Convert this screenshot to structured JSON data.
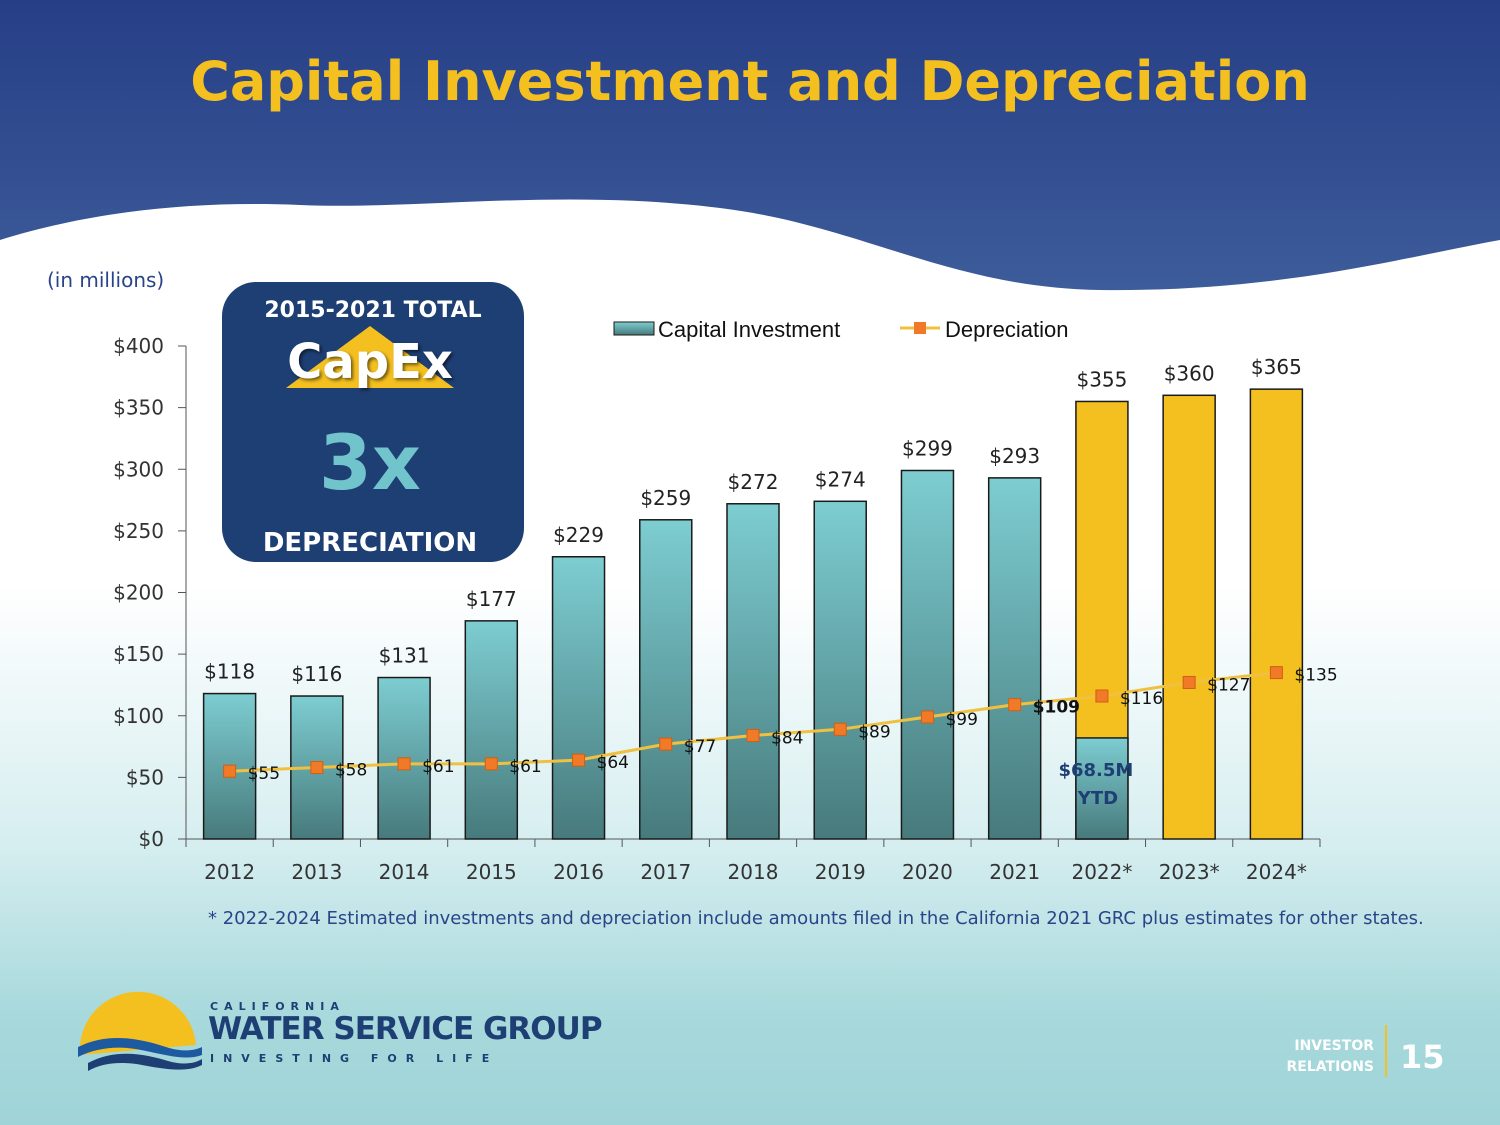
{
  "slide": {
    "title": "Capital Investment and Depreciation",
    "units_note": "(in millions)",
    "footnote": "* 2022-2024 Estimated investments and depreciation include amounts filed in the California 2021 GRC plus estimates for other states.",
    "page_number": "15",
    "investor_relations": [
      "INVESTOR",
      "RELATIONS"
    ]
  },
  "callout": {
    "top_text": "2015-2021 TOTAL",
    "capex_text": "CapEx",
    "multiplier_text": "3x",
    "bottom_text": "DEPRECIATION"
  },
  "logo": {
    "small_text": "CALIFORNIA",
    "main_text": "WATER SERVICE GROUP",
    "tagline": "INVESTING FOR LIFE"
  },
  "colors": {
    "header_blue": "#263e86",
    "title_gold": "#f4c020",
    "bar_teal_top": "#7dcdd1",
    "bar_teal_bottom": "#477a7c",
    "bar_gold": "#f4c020",
    "line_gold": "#f0c040",
    "marker_orange": "#f07a28",
    "text_blue": "#2a4488"
  },
  "chart_data": {
    "type": "bar",
    "categories": [
      "2012",
      "2013",
      "2014",
      "2015",
      "2016",
      "2017",
      "2018",
      "2019",
      "2020",
      "2021",
      "2022*",
      "2023*",
      "2024*"
    ],
    "ylim": [
      0,
      400
    ],
    "y_ticks": [
      "$0",
      "$50",
      "$100",
      "$150",
      "$200",
      "$250",
      "$300",
      "$350",
      "$400"
    ],
    "legend_position": "top",
    "series": [
      {
        "name": "Capital Investment",
        "kind": "bar",
        "values": [
          118,
          116,
          131,
          177,
          229,
          259,
          272,
          274,
          299,
          293,
          355,
          360,
          365
        ],
        "labels": [
          "$118",
          "$116",
          "$131",
          "$177",
          "$229",
          "$259",
          "$272",
          "$274",
          "$299",
          "$293",
          "$355",
          "$360",
          "$365"
        ],
        "estimated": [
          false,
          false,
          false,
          false,
          false,
          false,
          false,
          false,
          false,
          false,
          true,
          true,
          true
        ]
      },
      {
        "name": "Depreciation",
        "kind": "line",
        "values": [
          55,
          58,
          61,
          61,
          64,
          77,
          84,
          89,
          99,
          109,
          116,
          127,
          135
        ],
        "labels": [
          "$55",
          "$58",
          "$61",
          "$61",
          "$64",
          "$77",
          "$84",
          "$89",
          "$99",
          "$109",
          "$116",
          "$127",
          "$135"
        ]
      }
    ],
    "ytd_value": 82,
    "ytd_label": [
      "$68.5M",
      "YTD"
    ]
  }
}
